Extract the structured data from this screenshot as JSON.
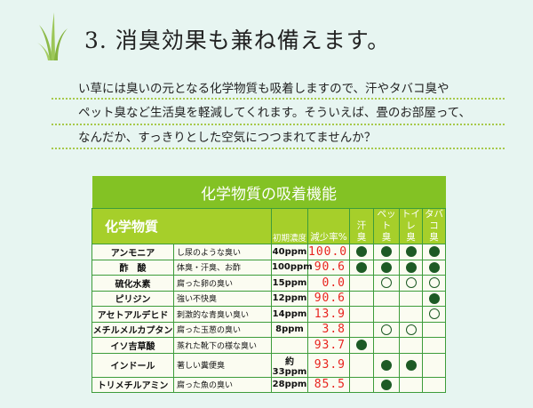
{
  "heading": "3.  消臭効果も兼ね備えます。",
  "paragraph": [
    "い草には臭いの元となる化学物質も吸着しますので、汗やタバコ臭や",
    "ペット臭など生活臭を軽減してくれます。そういえば、畳のお部屋って、",
    "なんだか、すっきりとした空気につつまれてませんか？"
  ],
  "table": {
    "title": "化学物質の吸着機能",
    "headers": {
      "substance": "化学物質",
      "concentration": "初期濃度",
      "reduction": "減少率%",
      "odors": [
        [
          "汗",
          "臭"
        ],
        [
          "ペット",
          "臭"
        ],
        [
          "トイレ",
          "臭"
        ],
        [
          "タバコ",
          "臭"
        ]
      ]
    },
    "legend_marks": {
      "filled": "filled-circle",
      "open": "open-circle"
    },
    "rows": [
      {
        "name": "アンモニア",
        "desc": "し尿のような臭い",
        "conc": "40ppm",
        "rate": "100.0",
        "marks": [
          "F",
          "F",
          "F",
          "F"
        ]
      },
      {
        "name": "酢　酸",
        "desc": "体臭・汗臭、お酢",
        "conc": "100ppm",
        "rate": "90.6",
        "marks": [
          "F",
          "F",
          "F",
          "F"
        ]
      },
      {
        "name": "硫化水素",
        "desc": "腐った卵の臭い",
        "conc": "15ppm",
        "rate": "0.0",
        "marks": [
          "",
          "O",
          "O",
          "O"
        ]
      },
      {
        "name": "ピリジン",
        "desc": "強い不快臭",
        "conc": "12ppm",
        "rate": "90.6",
        "marks": [
          "",
          "",
          "",
          "F"
        ]
      },
      {
        "name": "アセトアルデヒド",
        "desc": "刺激的な青臭い臭い",
        "conc": "14ppm",
        "rate": "13.9",
        "marks": [
          "",
          "",
          "",
          "O"
        ]
      },
      {
        "name": "メチルメルカプタン",
        "desc": "腐った玉葱の臭い",
        "conc": "8ppm",
        "rate": "3.8",
        "marks": [
          "",
          "O",
          "O",
          ""
        ]
      },
      {
        "name": "イソ吉草酸",
        "desc": "蒸れた靴下の様な臭い",
        "conc": "",
        "rate": "93.7",
        "marks": [
          "F",
          "",
          "",
          ""
        ]
      },
      {
        "name": "インドール",
        "desc": "著しい糞便臭",
        "conc": "約33ppm",
        "rate": "93.9",
        "marks": [
          "",
          "F",
          "F",
          ""
        ]
      },
      {
        "name": "トリメチルアミン",
        "desc": "腐った魚の臭い",
        "conc": "28ppm",
        "rate": "85.5",
        "marks": [
          "",
          "F",
          "",
          ""
        ]
      }
    ]
  },
  "colors": {
    "title_bar": "#83c224",
    "header": "#a6cf2a",
    "border": "#3d9c3a",
    "rate": "#e8241f",
    "mark": "#1d5a25"
  }
}
